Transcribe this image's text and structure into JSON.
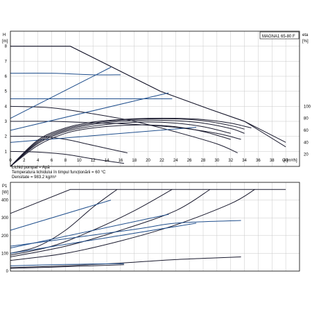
{
  "chart_data": [
    {
      "type": "line",
      "title": "MAGNA1 65-80 F",
      "ylabel": "H",
      "ylabel_unit": "[m]",
      "y2label": "eta",
      "y2label_unit": "[%]",
      "xlabel": "Q [m³/h]",
      "x_ticks": [
        "0",
        "2",
        "4",
        "6",
        "8",
        "10",
        "12",
        "14",
        "16",
        "18",
        "20",
        "22",
        "24",
        "26",
        "28",
        "30",
        "32",
        "34",
        "36",
        "38",
        "40"
      ],
      "y_ticks": [
        "1",
        "2",
        "3",
        "4",
        "5",
        "6",
        "7",
        "8"
      ],
      "y2_ticks": [
        "20",
        "40",
        "60",
        "80",
        "100"
      ],
      "xlim": [
        0,
        42
      ],
      "ylim": [
        0,
        9
      ],
      "y2lim": [
        0,
        225
      ],
      "grid": true,
      "notes": [
        "Lichid pompat = Apă",
        "Temperatura lichidului în timpul funcționării = 60 °C",
        "Densitate = 983.2 kg/m³"
      ],
      "series": [
        {
          "role": "head",
          "color": "#1a1a2e",
          "x": [
            0,
            8.7,
            21.8,
            29,
            34,
            40
          ],
          "y": [
            8.0,
            8.0,
            5.0,
            3.8,
            3.0,
            1.6
          ]
        },
        {
          "role": "head",
          "color": "#1a1a2e",
          "x": [
            0,
            8.7,
            21.8,
            29,
            34,
            40
          ],
          "y": [
            8.0,
            8.0,
            5.0,
            3.8,
            3.0,
            1.3
          ]
        },
        {
          "role": "head",
          "color": "#1f4e8c",
          "x": [
            0,
            6,
            12,
            16
          ],
          "y": [
            6.2,
            6.2,
            6.1,
            6.1
          ]
        },
        {
          "role": "head",
          "color": "#1f4e8c",
          "x": [
            0,
            6,
            12,
            18,
            23.5
          ],
          "y": [
            4.5,
            4.5,
            4.5,
            4.5,
            4.5
          ]
        },
        {
          "role": "head",
          "color": "#1a1a2e",
          "x": [
            0,
            6,
            12,
            18,
            24,
            30,
            33
          ],
          "y": [
            4.0,
            3.9,
            3.5,
            3.0,
            2.3,
            1.5,
            0.9
          ]
        },
        {
          "role": "head",
          "color": "#1a1a2e",
          "x": [
            0,
            6,
            12,
            18,
            24,
            30,
            33.5
          ],
          "y": [
            3.0,
            3.0,
            2.9,
            2.8,
            2.6,
            2.2,
            1.8
          ]
        },
        {
          "role": "head",
          "color": "#1a1a2e",
          "x": [
            0,
            4,
            8,
            12,
            17
          ],
          "y": [
            2.0,
            2.0,
            1.8,
            1.4,
            0.9
          ]
        },
        {
          "role": "head",
          "color": "#1a1a2e",
          "x": [
            0,
            4,
            8,
            12,
            16.5
          ],
          "y": [
            1.0,
            0.95,
            0.8,
            0.5,
            0.2
          ]
        },
        {
          "role": "control",
          "color": "#1f4e8c",
          "x": [
            0,
            14.6
          ],
          "y": [
            3.2,
            6.6
          ]
        },
        {
          "role": "control",
          "color": "#1f4e8c",
          "x": [
            0,
            23
          ],
          "y": [
            2.4,
            4.9
          ]
        },
        {
          "role": "control",
          "color": "#1f4e8c",
          "x": [
            0,
            27
          ],
          "y": [
            1.6,
            2.6
          ]
        },
        {
          "role": "eta",
          "color": "#1a1a2e",
          "x": [
            0,
            4,
            8,
            12,
            16,
            20,
            24,
            28,
            32
          ],
          "y": [
            0,
            35,
            55,
            64,
            68,
            69,
            66,
            58,
            45
          ]
        },
        {
          "role": "eta",
          "color": "#1a1a2e",
          "x": [
            0,
            4,
            8,
            12,
            16,
            20,
            24,
            28,
            32
          ],
          "y": [
            0,
            38,
            58,
            67,
            72,
            74,
            72,
            66,
            55
          ]
        },
        {
          "role": "eta",
          "color": "#1a1a2e",
          "x": [
            0,
            4,
            8,
            12,
            16,
            20,
            24,
            28,
            32,
            34
          ],
          "y": [
            0,
            40,
            60,
            70,
            75,
            77,
            76,
            72,
            63,
            55
          ]
        },
        {
          "role": "eta",
          "color": "#1a1a2e",
          "x": [
            0,
            4,
            8,
            12,
            16,
            20,
            24,
            28,
            32,
            34
          ],
          "y": [
            0,
            42,
            62,
            72,
            77,
            79,
            79,
            76,
            68,
            62
          ]
        },
        {
          "role": "eta",
          "color": "#1a1a2e",
          "x": [
            0,
            4,
            8,
            12,
            16,
            20,
            24,
            28,
            32,
            35
          ],
          "y": [
            0,
            44,
            64,
            74,
            78,
            80,
            80,
            78,
            72,
            64
          ]
        }
      ]
    },
    {
      "type": "line",
      "ylabel": "P1",
      "ylabel_unit": "[W]",
      "y_ticks": [
        "0",
        "100",
        "200",
        "300",
        "400"
      ],
      "xlim": [
        0,
        42
      ],
      "ylim": [
        0,
        500
      ],
      "grid": true,
      "series": [
        {
          "role": "p1",
          "color": "#1a1a2e",
          "x": [
            0,
            8.7,
            40
          ],
          "y": [
            325,
            460,
            460
          ]
        },
        {
          "role": "p1",
          "color": "#1a1a2e",
          "x": [
            0,
            4,
            8,
            12,
            15.5
          ],
          "y": [
            100,
            140,
            230,
            360,
            460
          ]
        },
        {
          "role": "p1",
          "color": "#1a1a2e",
          "x": [
            0,
            6,
            12,
            18,
            23.5
          ],
          "y": [
            90,
            140,
            230,
            340,
            460
          ]
        },
        {
          "role": "p1",
          "color": "#1a1a2e",
          "x": [
            0,
            8,
            16,
            24,
            29
          ],
          "y": [
            80,
            140,
            230,
            340,
            460
          ]
        },
        {
          "role": "p1",
          "color": "#1a1a2e",
          "x": [
            0,
            8,
            16,
            24,
            32,
            35.5
          ],
          "y": [
            60,
            100,
            170,
            260,
            380,
            460
          ]
        },
        {
          "role": "p1",
          "color": "#1a1a2e",
          "x": [
            0,
            8,
            16,
            24,
            33.5
          ],
          "y": [
            20,
            30,
            45,
            65,
            80
          ]
        },
        {
          "role": "p1",
          "color": "#1a1a2e",
          "x": [
            0,
            6,
            12,
            16.5
          ],
          "y": [
            15,
            22,
            30,
            36
          ]
        },
        {
          "role": "p1",
          "color": "#1f4e8c",
          "x": [
            0,
            18,
            24,
            33.5
          ],
          "y": [
            140,
            235,
            270,
            285
          ]
        },
        {
          "role": "p1",
          "color": "#1f4e8c",
          "x": [
            0,
            6,
            12,
            16.5
          ],
          "y": [
            30,
            36,
            40,
            42
          ]
        },
        {
          "role": "control",
          "color": "#1f4e8c",
          "x": [
            0,
            14.6
          ],
          "y": [
            230,
            400
          ]
        },
        {
          "role": "control",
          "color": "#1f4e8c",
          "x": [
            0,
            23
          ],
          "y": [
            130,
            320
          ]
        },
        {
          "role": "control",
          "color": "#1f4e8c",
          "x": [
            0,
            27
          ],
          "y": [
            100,
            270
          ]
        }
      ]
    }
  ]
}
